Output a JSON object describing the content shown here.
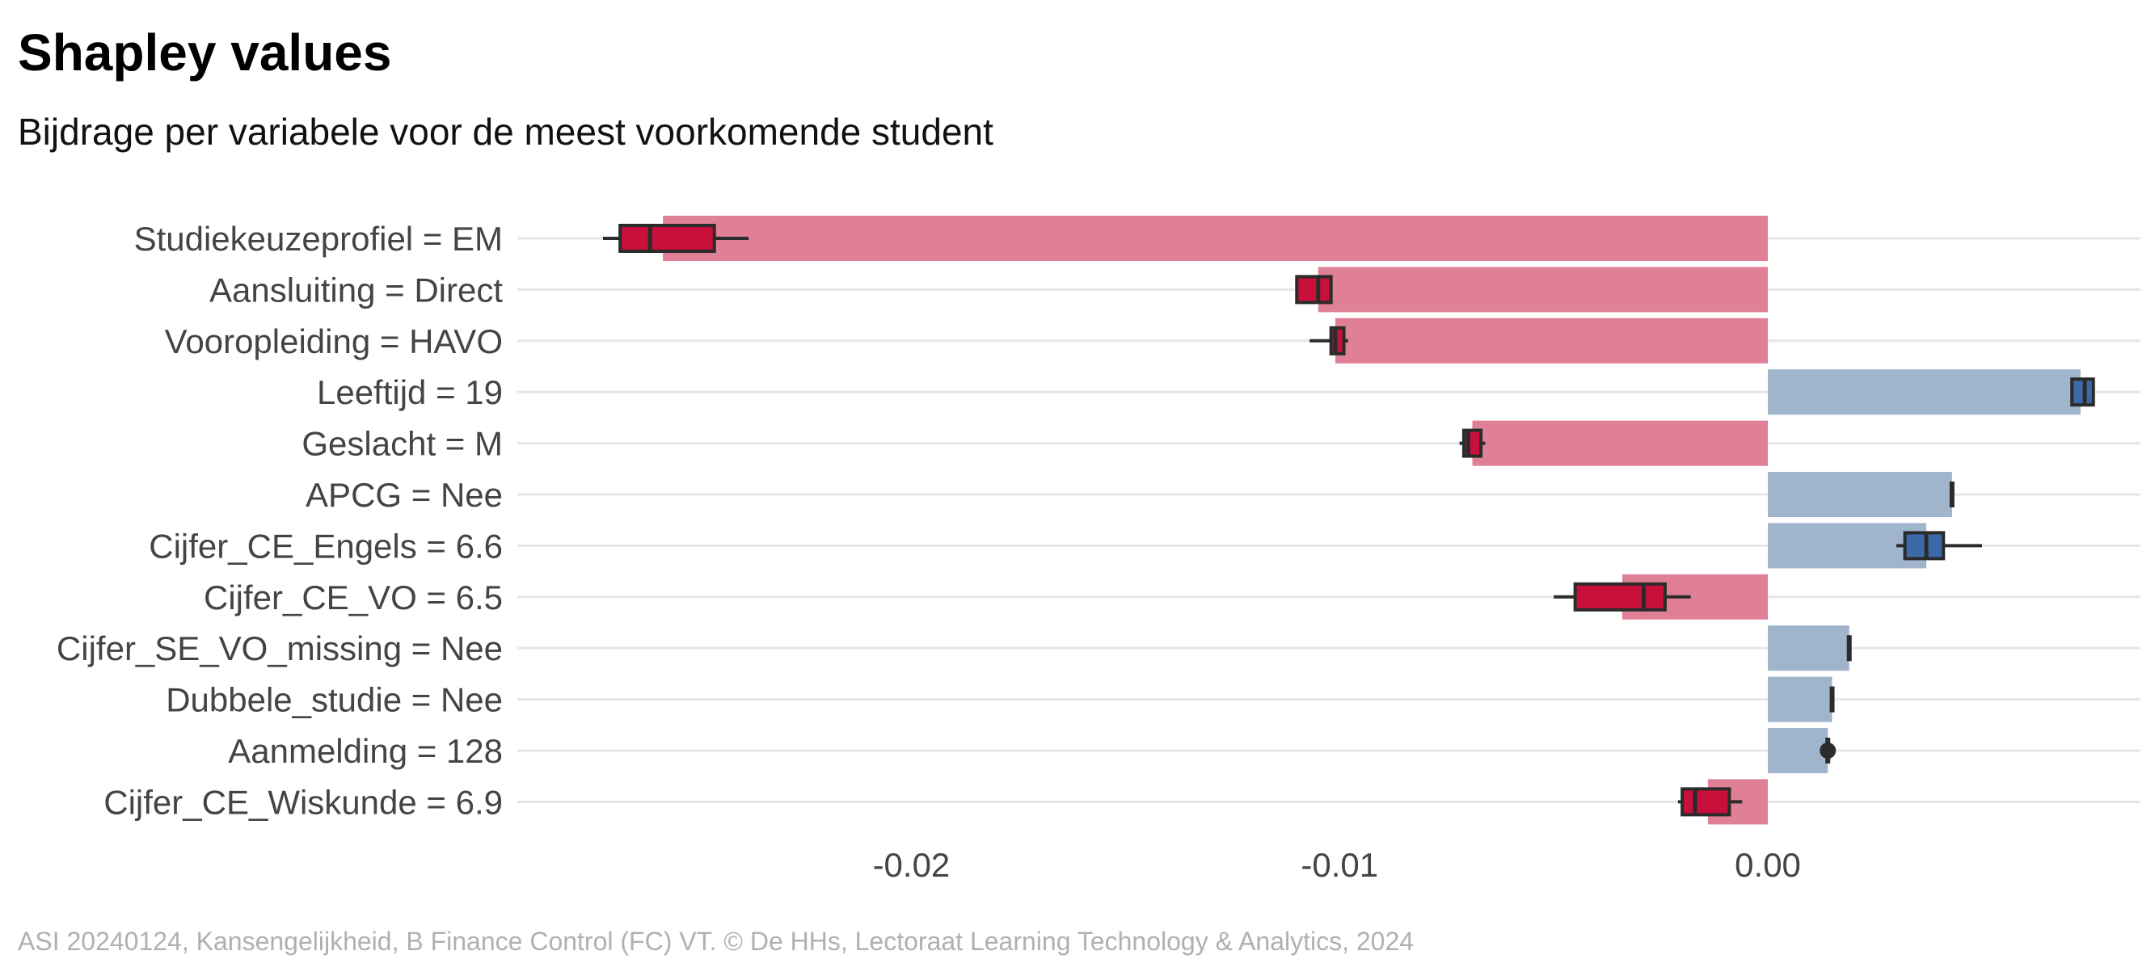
{
  "title": "Shapley values",
  "subtitle": "Bijdrage per variabele voor de meest voorkomende student",
  "caption": "ASI 20240124, Kansengelijkheid, B Finance Control (FC) VT. © De HHs, Lectoraat Learning Technology & Analytics, 2024",
  "colors": {
    "negative_bar": "#df8096",
    "positive_bar": "#a0b4cc",
    "negative_box": "#c8103b",
    "positive_box": "#3c6aa8",
    "box_line": "#2b2b2b",
    "grid": "#e6e6e6"
  },
  "chart_data": {
    "type": "bar",
    "orientation": "horizontal",
    "xlim": [
      -0.0292,
      0.0087
    ],
    "x_ticks": [
      {
        "value": -0.02,
        "label": "-0.02"
      },
      {
        "value": -0.01,
        "label": "-0.01"
      },
      {
        "value": 0.0,
        "label": "0.00"
      }
    ],
    "grid": true,
    "rows": [
      {
        "label": "Studiekeuzeprofiel = EM",
        "value": -0.0258,
        "box": {
          "min": -0.0272,
          "q1": -0.0268,
          "median": -0.0261,
          "q3": -0.0246,
          "max": -0.0238
        }
      },
      {
        "label": "Aansluiting = Direct",
        "value": -0.0105,
        "box": {
          "min": -0.011,
          "q1": -0.011,
          "median": -0.0105,
          "q3": -0.0102,
          "max": -0.0102
        }
      },
      {
        "label": "Vooropleiding = HAVO",
        "value": -0.0101,
        "box": {
          "min": -0.0107,
          "q1": -0.0102,
          "median": -0.0101,
          "q3": -0.0099,
          "max": -0.0098
        }
      },
      {
        "label": "Leeftijd = 19",
        "value": 0.0073,
        "box": {
          "min": 0.0071,
          "q1": 0.0071,
          "median": 0.0074,
          "q3": 0.0076,
          "max": 0.0076
        }
      },
      {
        "label": "Geslacht = M",
        "value": -0.0069,
        "box": {
          "min": -0.0072,
          "q1": -0.0071,
          "median": -0.007,
          "q3": -0.0067,
          "max": -0.0066
        }
      },
      {
        "label": "APCG = Nee",
        "value": 0.0043,
        "box": {
          "min": 0.0043,
          "q1": 0.0043,
          "median": 0.0043,
          "q3": 0.0043,
          "max": 0.0043
        }
      },
      {
        "label": "Cijfer_CE_Engels = 6.6",
        "value": 0.0037,
        "box": {
          "min": 0.003,
          "q1": 0.0032,
          "median": 0.0037,
          "q3": 0.0041,
          "max": 0.005
        }
      },
      {
        "label": "Cijfer_CE_VO = 6.5",
        "value": -0.0034,
        "box": {
          "min": -0.005,
          "q1": -0.0045,
          "median": -0.0029,
          "q3": -0.0024,
          "max": -0.0018
        }
      },
      {
        "label": "Cijfer_SE_VO_missing = Nee",
        "value": 0.0019,
        "box": {
          "min": 0.0019,
          "q1": 0.0019,
          "median": 0.0019,
          "q3": 0.0019,
          "max": 0.0019
        }
      },
      {
        "label": "Dubbele_studie = Nee",
        "value": 0.0015,
        "box": {
          "min": 0.0015,
          "q1": 0.0015,
          "median": 0.0015,
          "q3": 0.0015,
          "max": 0.0015
        }
      },
      {
        "label": "Aanmelding = 128",
        "value": 0.0014,
        "box": {
          "min": 0.0014,
          "q1": 0.0014,
          "median": 0.0014,
          "q3": 0.0014,
          "max": 0.0014
        }
      },
      {
        "label": "Cijfer_CE_Wiskunde = 6.9",
        "value": -0.0014,
        "box": {
          "min": -0.0021,
          "q1": -0.002,
          "median": -0.0017,
          "q3": -0.0009,
          "max": -0.0006
        }
      }
    ]
  }
}
